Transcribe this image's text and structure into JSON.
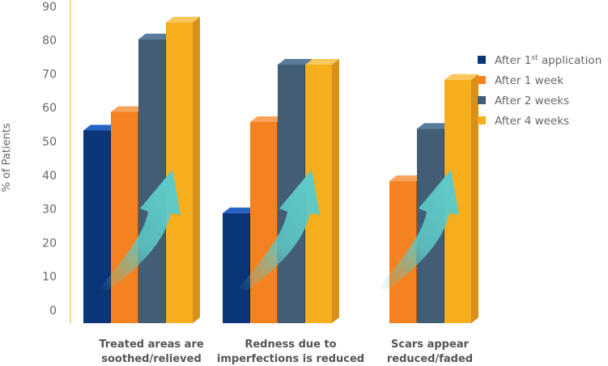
{
  "chart_data": {
    "type": "bar",
    "title": "",
    "xlabel": "",
    "ylabel": "% of Patients",
    "ylim": [
      0,
      90
    ],
    "yticks": [
      0,
      10,
      20,
      30,
      40,
      50,
      60,
      70,
      80,
      90
    ],
    "categories": [
      [
        "Treated areas are",
        "soothed/relieved"
      ],
      [
        "Redness due to",
        "imperfections is reduced"
      ],
      [
        "Scars appear",
        "reduced/faded"
      ]
    ],
    "series": [
      {
        "name": "After 1",
        "sup": "st",
        "name_tail": " application",
        "color": "#0a3578",
        "top": "#2463c4",
        "side": "#061f4a",
        "values": [
          53,
          28.5,
          null
        ]
      },
      {
        "name": "After 1 week",
        "color": "#f58220",
        "top": "#f7a35a",
        "side": "#b75a10",
        "values": [
          58.5,
          55.5,
          38
        ]
      },
      {
        "name": "After 2 weeks",
        "color": "#435d75",
        "top": "#5a7c9c",
        "side": "#2f4356",
        "values": [
          80,
          72.5,
          53.5
        ]
      },
      {
        "name": "After 4 weeks",
        "color": "#f6ae1c",
        "top": "#f8c75e",
        "side": "#d8901a",
        "values": [
          85,
          72.5,
          68
        ]
      }
    ],
    "legend": "right",
    "grid": false
  }
}
